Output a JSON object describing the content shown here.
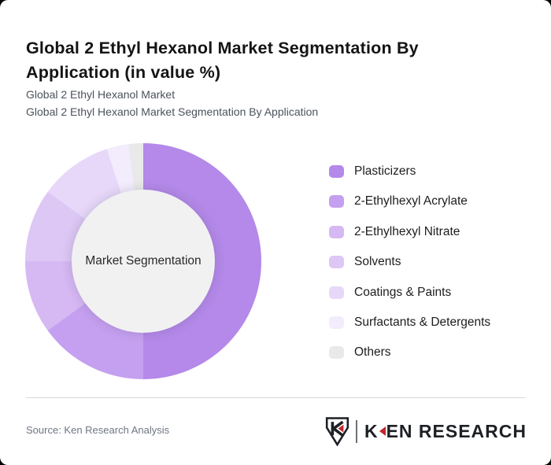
{
  "page": {
    "background_color": "#000000",
    "card_background": "#ffffff"
  },
  "header": {
    "title": "Global 2 Ethyl Hexanol Market Segmentation By Application (in value %)",
    "subtitle_line1": "Global 2 Ethyl Hexanol Market",
    "subtitle_line2": "Global 2 Ethyl Hexanol Market Segmentation By Application"
  },
  "chart_data": {
    "type": "pie",
    "donut": true,
    "title": "Global 2 Ethyl Hexanol Market Segmentation By Application (in value %)",
    "unit": "value %",
    "center_label": "Market Segmentation",
    "legend_position": "right",
    "start_angle_deg": 0,
    "categories": [
      "Plasticizers",
      "2-Ethylhexyl Acrylate",
      "2-Ethylhexyl Nitrate",
      "Solvents",
      "Coatings & Paints",
      "Surfactants & Detergents",
      "Others"
    ],
    "values": [
      50,
      15,
      10,
      10,
      10,
      3,
      2
    ],
    "colors": [
      "#b489e9",
      "#c5a0f0",
      "#d6b8f3",
      "#ddc7f5",
      "#e7d8f9",
      "#f2ecfc",
      "#e9e9ea"
    ],
    "inner_circle_color": "#f1f1f2"
  },
  "footer": {
    "source": "Source: Ken Research Analysis",
    "logo": {
      "monogram_letter": "K",
      "name_part1": "K",
      "name_part2": "EN",
      "name_part3": " RESEARCH",
      "red": "#c5262c",
      "black": "#1d2025"
    }
  }
}
